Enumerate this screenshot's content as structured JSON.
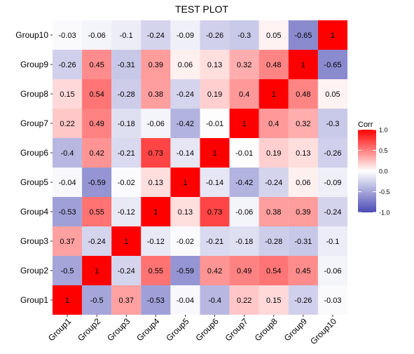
{
  "chart_data": {
    "type": "heatmap",
    "title": "TEST PLOT",
    "xlabel": "",
    "ylabel": "",
    "categories": [
      "Group1",
      "Group2",
      "Group3",
      "Group4",
      "Group5",
      "Group6",
      "Group7",
      "Group8",
      "Group9",
      "Group10"
    ],
    "matrix": [
      [
        1,
        -0.5,
        0.37,
        -0.53,
        -0.04,
        -0.4,
        0.22,
        0.15,
        -0.26,
        -0.03
      ],
      [
        -0.5,
        1,
        -0.24,
        0.55,
        -0.59,
        0.42,
        0.49,
        0.54,
        0.45,
        -0.06
      ],
      [
        0.37,
        -0.24,
        1,
        -0.12,
        -0.02,
        -0.21,
        -0.18,
        -0.28,
        -0.31,
        -0.1
      ],
      [
        -0.53,
        0.55,
        -0.12,
        1,
        0.13,
        0.73,
        -0.06,
        0.38,
        0.39,
        -0.24
      ],
      [
        -0.04,
        -0.59,
        -0.02,
        0.13,
        1,
        -0.14,
        -0.42,
        -0.24,
        0.06,
        -0.09
      ],
      [
        -0.4,
        0.42,
        -0.21,
        0.73,
        -0.14,
        1,
        -0.01,
        0.19,
        0.13,
        -0.26
      ],
      [
        0.22,
        0.49,
        -0.18,
        -0.06,
        -0.42,
        -0.01,
        1,
        0.4,
        0.32,
        -0.3
      ],
      [
        0.15,
        0.54,
        -0.28,
        0.38,
        -0.24,
        0.19,
        0.4,
        1,
        0.48,
        0.05
      ],
      [
        -0.26,
        0.45,
        -0.31,
        0.39,
        0.06,
        0.13,
        0.32,
        0.48,
        1,
        -0.65
      ],
      [
        -0.03,
        -0.06,
        -0.1,
        -0.24,
        -0.09,
        -0.26,
        -0.3,
        0.05,
        -0.65,
        1
      ]
    ],
    "value_range": [
      -1,
      1
    ],
    "grid": true,
    "legend": {
      "title": "Corr",
      "position": "right",
      "ticks": [
        1.0,
        0.5,
        0.0,
        -0.5,
        -1.0
      ],
      "tick_labels": [
        "1.0",
        "0.5",
        "0.0",
        "-0.5",
        "-1.0"
      ]
    },
    "colors": {
      "low": "#4B4BB5",
      "mid": "#FFFFFF",
      "high": "#FF0000",
      "panel_background": "#EBEBF5",
      "grid": "#FFFFFF"
    }
  }
}
